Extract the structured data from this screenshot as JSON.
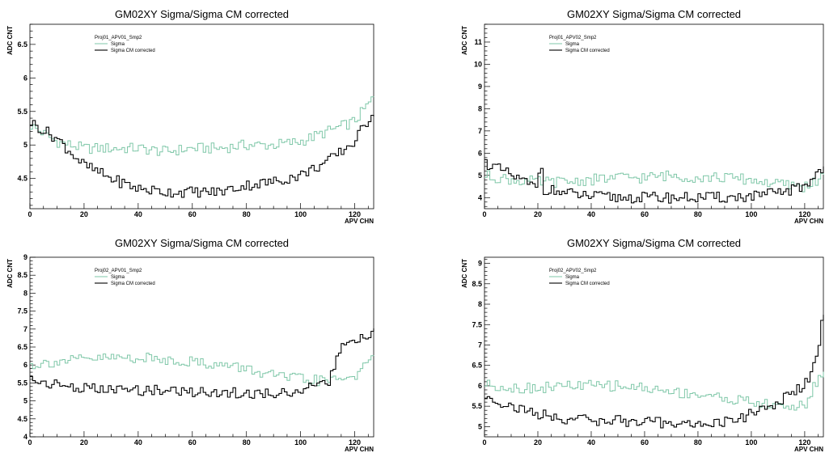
{
  "chart_data": [
    {
      "type": "line",
      "title": "GM02XY Sigma/Sigma CM corrected",
      "xlabel": "APV CHN",
      "ylabel": "ADC  CNT",
      "xlim": [
        0,
        127
      ],
      "ylim": [
        4.05,
        6.8
      ],
      "xticks": [
        0,
        20,
        40,
        60,
        80,
        100,
        120
      ],
      "yticks": [
        4.5,
        5,
        5.5,
        6,
        6.5
      ],
      "legend_header": "Proj01_APV01_Smp2",
      "legend_position": "top-left",
      "series": [
        {
          "name": "Sigma",
          "color": "#7fc7a8",
          "x": [
            0,
            10,
            20,
            30,
            40,
            50,
            60,
            70,
            80,
            90,
            100,
            110,
            120,
            127
          ],
          "y": [
            5.3,
            5.05,
            4.95,
            4.95,
            4.95,
            4.9,
            4.95,
            4.95,
            5.0,
            5.0,
            5.05,
            5.2,
            5.35,
            5.7
          ]
        },
        {
          "name": "Sigma CM corrected",
          "color": "#000000",
          "x": [
            0,
            10,
            20,
            30,
            40,
            50,
            60,
            70,
            80,
            90,
            100,
            110,
            120,
            127
          ],
          "y": [
            5.35,
            5.1,
            4.7,
            4.5,
            4.35,
            4.3,
            4.3,
            4.3,
            4.4,
            4.45,
            4.55,
            4.75,
            5.05,
            5.5
          ]
        }
      ]
    },
    {
      "type": "line",
      "title": "GM02XY Sigma/Sigma CM corrected",
      "xlabel": "APV CHN",
      "ylabel": "ADC  CNT",
      "xlim": [
        0,
        127
      ],
      "ylim": [
        3.5,
        11.8
      ],
      "xticks": [
        0,
        20,
        40,
        60,
        80,
        100,
        120
      ],
      "yticks": [
        4,
        5,
        6,
        7,
        8,
        9,
        10,
        11
      ],
      "legend_header": "Proj01_APV02_Smp2",
      "legend_position": "top-left",
      "series": [
        {
          "name": "Sigma",
          "color": "#7fc7a8",
          "x": [
            0,
            10,
            20,
            30,
            40,
            50,
            60,
            70,
            80,
            90,
            100,
            110,
            120,
            127
          ],
          "y": [
            5.0,
            4.8,
            4.7,
            4.7,
            4.8,
            4.9,
            4.9,
            5.0,
            4.9,
            4.9,
            4.8,
            4.6,
            4.5,
            4.9
          ]
        },
        {
          "name": "Sigma CM corrected",
          "color": "#000000",
          "x": [
            0,
            10,
            20,
            21,
            22,
            30,
            40,
            50,
            60,
            70,
            80,
            90,
            100,
            110,
            120,
            127
          ],
          "y": [
            5.6,
            5.0,
            4.4,
            6.1,
            4.4,
            4.2,
            4.05,
            4.0,
            4.0,
            4.0,
            4.0,
            4.0,
            4.05,
            4.2,
            4.5,
            5.4
          ]
        }
      ]
    },
    {
      "type": "line",
      "title": "GM02XY Sigma/Sigma CM corrected",
      "xlabel": "APV CHN",
      "ylabel": "ADC  CNT",
      "xlim": [
        0,
        127
      ],
      "ylim": [
        4,
        9
      ],
      "xticks": [
        0,
        20,
        40,
        60,
        80,
        100,
        120
      ],
      "yticks": [
        4,
        4.5,
        5,
        5.5,
        6,
        6.5,
        7,
        7.5,
        8,
        8.5,
        9
      ],
      "legend_header": "Proj02_APV01_Smp2",
      "legend_position": "top-left",
      "series": [
        {
          "name": "Sigma",
          "color": "#7fc7a8",
          "x": [
            0,
            10,
            20,
            30,
            40,
            50,
            60,
            70,
            80,
            90,
            100,
            110,
            120,
            127
          ],
          "y": [
            6.0,
            6.1,
            6.15,
            6.2,
            6.2,
            6.15,
            6.1,
            6.0,
            5.9,
            5.7,
            5.6,
            5.55,
            5.7,
            6.15
          ]
        },
        {
          "name": "Sigma CM corrected",
          "color": "#000000",
          "x": [
            0,
            10,
            20,
            30,
            40,
            50,
            60,
            70,
            80,
            90,
            100,
            110,
            115,
            120,
            127
          ],
          "y": [
            5.6,
            5.45,
            5.35,
            5.3,
            5.3,
            5.3,
            5.25,
            5.25,
            5.2,
            5.2,
            5.3,
            5.45,
            6.5,
            6.6,
            6.9
          ]
        }
      ]
    },
    {
      "type": "line",
      "title": "GM02XY Sigma/Sigma CM corrected",
      "xlabel": "APV CHN",
      "ylabel": "ADC  CNT",
      "xlim": [
        0,
        127
      ],
      "ylim": [
        4.75,
        9.15
      ],
      "xticks": [
        0,
        20,
        40,
        60,
        80,
        100,
        120
      ],
      "yticks": [
        5,
        5.5,
        6,
        6.5,
        7,
        7.5,
        8,
        8.5,
        9
      ],
      "legend_header": "Proj02_APV02_Smp2",
      "legend_position": "top-left",
      "series": [
        {
          "name": "Sigma",
          "color": "#7fc7a8",
          "x": [
            0,
            10,
            20,
            30,
            40,
            50,
            60,
            70,
            80,
            90,
            100,
            110,
            120,
            127
          ],
          "y": [
            6.05,
            5.95,
            5.95,
            6.0,
            6.0,
            6.0,
            5.95,
            5.85,
            5.8,
            5.7,
            5.6,
            5.5,
            5.5,
            6.4
          ]
        },
        {
          "name": "Sigma CM corrected",
          "color": "#000000",
          "x": [
            0,
            10,
            20,
            30,
            40,
            50,
            60,
            70,
            80,
            90,
            100,
            110,
            120,
            125,
            127
          ],
          "y": [
            5.75,
            5.5,
            5.3,
            5.2,
            5.15,
            5.15,
            5.1,
            5.1,
            5.05,
            5.1,
            5.3,
            5.6,
            6.0,
            6.7,
            7.8
          ]
        }
      ]
    }
  ]
}
